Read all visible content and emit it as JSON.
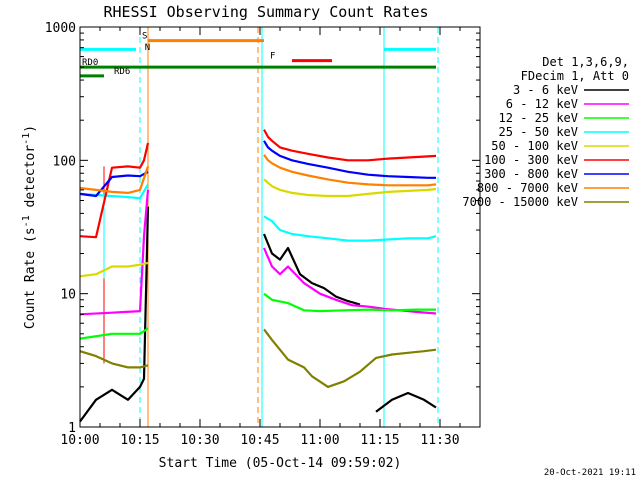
{
  "chart_data": {
    "type": "line",
    "title": "RHESSI Observing Summary Count Rates",
    "xlabel": "Start Time (05-Oct-14 09:59:02)",
    "ylabel_main": "Count Rate (s",
    "ylabel_sup1": "-1",
    "ylabel_mid": " detector",
    "ylabel_sup2": "-1",
    "ylabel_end": ")",
    "y_scale": "log",
    "xlim_minutes": [
      0,
      100
    ],
    "ylim": [
      1,
      1000
    ],
    "x_ticks": [
      {
        "label": "10:00",
        "m": 0
      },
      {
        "label": "10:15",
        "m": 15
      },
      {
        "label": "10:30",
        "m": 30
      },
      {
        "label": "10:45",
        "m": 45
      },
      {
        "label": "11:00",
        "m": 60
      },
      {
        "label": "11:15",
        "m": 75
      },
      {
        "label": "11:30",
        "m": 90
      }
    ],
    "y_ticks": [
      {
        "label": "1",
        "v": 1
      },
      {
        "label": "10",
        "v": 10
      },
      {
        "label": "100",
        "v": 100
      },
      {
        "label": "1000",
        "v": 1000
      }
    ],
    "legend_header": [
      "Det 1,3,6,9,",
      "FDecim 1, Att 0"
    ],
    "legend_placement": "right",
    "timestamp": "20-Oct-2021 19:11",
    "series": [
      {
        "name": "3 - 6 keV",
        "color": "#000000",
        "segments": [
          [
            [
              0,
              1.1
            ],
            [
              4,
              1.6
            ],
            [
              8,
              1.9
            ],
            [
              12,
              1.6
            ],
            [
              15,
              2.0
            ],
            [
              16,
              2.3
            ],
            [
              17,
              45
            ]
          ],
          [
            [
              46,
              28
            ],
            [
              48,
              20
            ],
            [
              50,
              18
            ],
            [
              52,
              22
            ],
            [
              55,
              14
            ],
            [
              58,
              12
            ],
            [
              61,
              11
            ],
            [
              64,
              9.5
            ],
            [
              67,
              8.8
            ],
            [
              70,
              8.3
            ]
          ],
          [
            [
              74,
              1.3
            ],
            [
              78,
              1.6
            ],
            [
              82,
              1.8
            ],
            [
              86,
              1.6
            ],
            [
              89,
              1.4
            ]
          ]
        ]
      },
      {
        "name": "6 - 12 keV",
        "color": "#ff00ff",
        "segments": [
          [
            [
              0,
              7.0
            ],
            [
              8,
              7.2
            ],
            [
              15,
              7.4
            ],
            [
              16,
              27
            ],
            [
              17,
              60
            ]
          ],
          [
            [
              46,
              22
            ],
            [
              48,
              16
            ],
            [
              50,
              14
            ],
            [
              52,
              16
            ],
            [
              56,
              12
            ],
            [
              60,
              10
            ],
            [
              64,
              9.0
            ],
            [
              68,
              8.2
            ],
            [
              72,
              8.0
            ],
            [
              76,
              7.7
            ],
            [
              80,
              7.5
            ],
            [
              84,
              7.3
            ],
            [
              89,
              7.1
            ]
          ]
        ]
      },
      {
        "name": "12 - 25 keV",
        "color": "#00ff00",
        "segments": [
          [
            [
              0,
              4.6
            ],
            [
              8,
              5.0
            ],
            [
              15,
              5.0
            ],
            [
              17,
              5.5
            ]
          ],
          [
            [
              46,
              10
            ],
            [
              48,
              9.0
            ],
            [
              52,
              8.5
            ],
            [
              56,
              7.5
            ],
            [
              60,
              7.4
            ],
            [
              66,
              7.5
            ],
            [
              72,
              7.6
            ],
            [
              78,
              7.5
            ],
            [
              84,
              7.6
            ],
            [
              89,
              7.6
            ]
          ]
        ]
      },
      {
        "name": "25 - 50 keV",
        "color": "#00ffff",
        "segments": [
          [
            [
              0,
              56
            ],
            [
              4,
              55
            ],
            [
              8,
              54
            ],
            [
              12,
              53
            ],
            [
              15,
              52
            ],
            [
              17,
              66
            ]
          ],
          [
            [
              46,
              38
            ],
            [
              48,
              35
            ],
            [
              50,
              30
            ],
            [
              53,
              28
            ],
            [
              57,
              27
            ],
            [
              62,
              26
            ],
            [
              67,
              25
            ],
            [
              72,
              25
            ],
            [
              77,
              25.5
            ],
            [
              82,
              26
            ],
            [
              87,
              26
            ],
            [
              89,
              27
            ]
          ]
        ]
      },
      {
        "name": "50 - 100 keV",
        "color": "#d9d900",
        "segments": [
          [
            [
              0,
              13.5
            ],
            [
              4,
              14
            ],
            [
              8,
              16
            ],
            [
              12,
              16
            ],
            [
              15,
              16.5
            ],
            [
              17,
              17
            ]
          ],
          [
            [
              46,
              72
            ],
            [
              48,
              64
            ],
            [
              50,
              60
            ],
            [
              53,
              57
            ],
            [
              57,
              55
            ],
            [
              62,
              54
            ],
            [
              67,
              54
            ],
            [
              72,
              56
            ],
            [
              77,
              58
            ],
            [
              82,
              59
            ],
            [
              87,
              60
            ],
            [
              89,
              61
            ]
          ]
        ]
      },
      {
        "name": "100 - 300 keV",
        "color": "#ff0000",
        "segments": [
          [
            [
              0,
              27
            ],
            [
              4,
              26.5
            ],
            [
              8,
              88
            ],
            [
              12,
              90
            ],
            [
              15,
              88
            ],
            [
              16,
              100
            ],
            [
              17,
              135
            ]
          ],
          [
            [
              46,
              170
            ],
            [
              47,
              150
            ],
            [
              48,
              140
            ],
            [
              50,
              125
            ],
            [
              53,
              118
            ],
            [
              57,
              112
            ],
            [
              62,
              105
            ],
            [
              67,
              100
            ],
            [
              72,
              100
            ],
            [
              77,
              103
            ],
            [
              82,
              105
            ],
            [
              87,
              107
            ],
            [
              89,
              108
            ]
          ]
        ]
      },
      {
        "name": "300 - 800 keV",
        "color": "#0000ff",
        "segments": [
          [
            [
              0,
              56
            ],
            [
              4,
              54
            ],
            [
              8,
              75
            ],
            [
              12,
              77
            ],
            [
              15,
              76
            ],
            [
              17,
              82
            ]
          ],
          [
            [
              46,
              140
            ],
            [
              47,
              125
            ],
            [
              48,
              118
            ],
            [
              50,
              108
            ],
            [
              53,
              100
            ],
            [
              57,
              94
            ],
            [
              62,
              88
            ],
            [
              67,
              82
            ],
            [
              72,
              78
            ],
            [
              77,
              76
            ],
            [
              82,
              75
            ],
            [
              87,
              74
            ],
            [
              89,
              74
            ]
          ]
        ]
      },
      {
        "name": "800 - 7000 keV",
        "color": "#ff8000",
        "segments": [
          [
            [
              0,
              62
            ],
            [
              4,
              60
            ],
            [
              8,
              58
            ],
            [
              12,
              57
            ],
            [
              15,
              60
            ],
            [
              17,
              90
            ]
          ],
          [
            [
              46,
              110
            ],
            [
              47,
              100
            ],
            [
              48,
              95
            ],
            [
              50,
              88
            ],
            [
              53,
              82
            ],
            [
              57,
              77
            ],
            [
              62,
              72
            ],
            [
              67,
              68
            ],
            [
              72,
              66
            ],
            [
              77,
              65
            ],
            [
              82,
              65
            ],
            [
              87,
              65
            ],
            [
              89,
              66
            ]
          ]
        ]
      },
      {
        "name": "7000 - 15000 keV",
        "color": "#808000",
        "segments": [
          [
            [
              0,
              3.7
            ],
            [
              4,
              3.4
            ],
            [
              8,
              3.0
            ],
            [
              12,
              2.8
            ],
            [
              15,
              2.8
            ],
            [
              17,
              2.9
            ]
          ],
          [
            [
              46,
              5.4
            ],
            [
              48,
              4.5
            ],
            [
              52,
              3.2
            ],
            [
              56,
              2.8
            ],
            [
              58,
              2.4
            ],
            [
              62,
              2.0
            ],
            [
              66,
              2.2
            ],
            [
              70,
              2.6
            ],
            [
              74,
              3.3
            ],
            [
              78,
              3.5
            ],
            [
              82,
              3.6
            ],
            [
              86,
              3.7
            ],
            [
              89,
              3.8
            ]
          ]
        ]
      }
    ],
    "state_bars": [
      {
        "label": "",
        "color": "#00ffff",
        "v": 680,
        "ranges": [
          [
            0,
            14
          ],
          [
            76,
            89
          ]
        ]
      },
      {
        "label": "S",
        "color": "#ff8000",
        "v": 790,
        "ranges": [
          [
            17,
            46
          ]
        ]
      },
      {
        "label": "N",
        "color": "#00ffff",
        "v": 650,
        "ranges": []
      },
      {
        "label": "F",
        "color": "#ff0000",
        "v": 560,
        "ranges": [
          [
            53,
            63
          ]
        ]
      },
      {
        "label": "RD0",
        "color": "#008000",
        "v": 500,
        "ranges": [
          [
            0,
            89
          ]
        ]
      },
      {
        "label": "RD6",
        "color": "#008000",
        "v": 430,
        "ranges": [
          [
            0,
            6
          ]
        ]
      }
    ],
    "state_label_positions": {
      "S": 15.5,
      "N": 16.2,
      "F": 47.5,
      "RD0": 0.5,
      "RD6": 8.5
    },
    "vlines": [
      {
        "m": 15.0,
        "color": "#00ffff",
        "dash": true
      },
      {
        "m": 17.0,
        "color": "#ff8000",
        "dash": false
      },
      {
        "m": 44.5,
        "color": "#ff8000",
        "dash": true
      },
      {
        "m": 45.5,
        "color": "#00ffff",
        "dash": false
      },
      {
        "m": 76.0,
        "color": "#00ffff",
        "dash": false
      },
      {
        "m": 89.5,
        "color": "#00ffff",
        "dash": true
      }
    ],
    "step_lines": [
      {
        "m": 6.0,
        "from": 3.0,
        "to": 90,
        "color": "#ff0000"
      },
      {
        "m": 6.0,
        "from": 13,
        "to": 56,
        "color": "#00ffff"
      }
    ]
  }
}
